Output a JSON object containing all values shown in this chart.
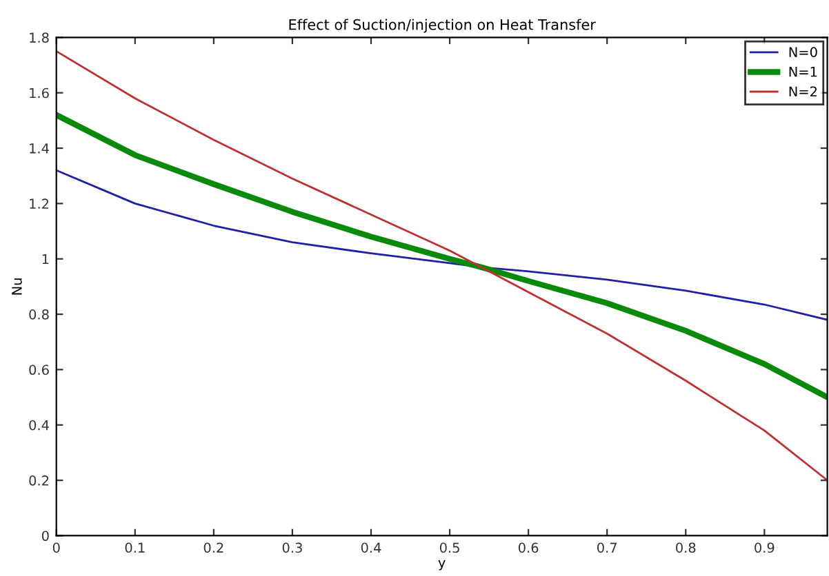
{
  "chart_data": {
    "type": "line",
    "title": "Effect of Suction/injection on Heat Transfer",
    "xlabel": "y",
    "ylabel": "Nu",
    "x": [
      0,
      0.1,
      0.2,
      0.3,
      0.4,
      0.5,
      0.54,
      0.6,
      0.7,
      0.8,
      0.9,
      0.98
    ],
    "series": [
      {
        "name": "N=0",
        "color": "#1f1fa8",
        "values": [
          1.32,
          1.2,
          1.12,
          1.06,
          1.02,
          0.985,
          0.97,
          0.955,
          0.925,
          0.885,
          0.835,
          0.78
        ]
      },
      {
        "name": "N=1",
        "color": "#0a8a0a",
        "values": [
          1.52,
          1.375,
          1.27,
          1.17,
          1.08,
          1.0,
          0.97,
          0.92,
          0.84,
          0.74,
          0.62,
          0.5
        ]
      },
      {
        "name": "N=2",
        "color": "#c03030",
        "values": [
          1.75,
          1.58,
          1.43,
          1.29,
          1.16,
          1.03,
          0.97,
          0.88,
          0.73,
          0.56,
          0.38,
          0.2
        ]
      }
    ],
    "xlim": [
      0,
      0.98
    ],
    "ylim": [
      0,
      1.8
    ],
    "xticks": [
      0,
      0.1,
      0.2,
      0.3,
      0.4,
      0.5,
      0.6,
      0.7,
      0.8,
      0.9
    ],
    "yticks": [
      0,
      0.2,
      0.4,
      0.6,
      0.8,
      1,
      1.2,
      1.4,
      1.6,
      1.8
    ],
    "legend": "top right",
    "grid": false
  }
}
